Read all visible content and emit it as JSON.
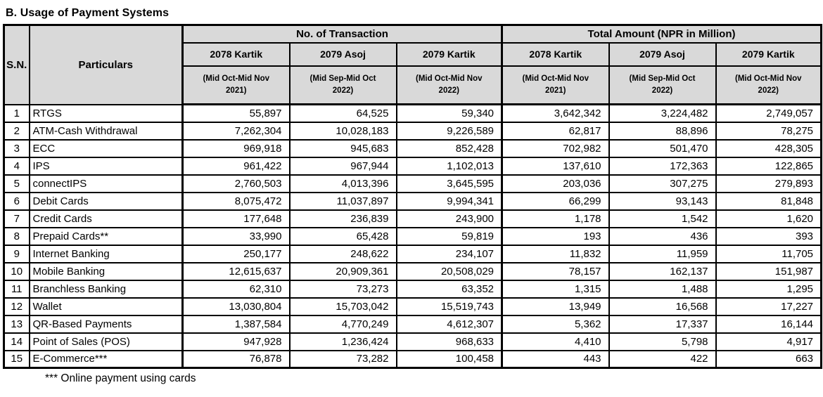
{
  "title": "B. Usage of Payment Systems",
  "colors": {
    "header_bg": "#d9d9d9",
    "border": "#000000",
    "text": "#000000",
    "row_bg": "#ffffff"
  },
  "table": {
    "corner": {
      "sn": "S.N.",
      "particulars": "Particulars"
    },
    "groups": [
      {
        "label": "No. of Transaction"
      },
      {
        "label": "Total Amount (NPR in Million)"
      }
    ],
    "periods": [
      {
        "name": "2078 Kartik",
        "sub": "(Mid Oct-Mid Nov 2021)"
      },
      {
        "name": "2079 Asoj",
        "sub": "(Mid Sep-Mid Oct 2022)"
      },
      {
        "name": "2079 Kartik",
        "sub": "(Mid Oct-Mid Nov 2022)"
      }
    ],
    "rows": [
      {
        "sn": "1",
        "particular": "RTGS",
        "values": [
          "55,897",
          "64,525",
          "59,340",
          "3,642,342",
          "3,224,482",
          "2,749,057"
        ]
      },
      {
        "sn": "2",
        "particular": "ATM-Cash Withdrawal",
        "values": [
          "7,262,304",
          "10,028,183",
          "9,226,589",
          "62,817",
          "88,896",
          "78,275"
        ]
      },
      {
        "sn": "3",
        "particular": "ECC",
        "values": [
          "969,918",
          "945,683",
          "852,428",
          "702,982",
          "501,470",
          "428,305"
        ]
      },
      {
        "sn": "4",
        "particular": "IPS",
        "values": [
          "961,422",
          "967,944",
          "1,102,013",
          "137,610",
          "172,363",
          "122,865"
        ]
      },
      {
        "sn": "5",
        "particular": "connectIPS",
        "values": [
          "2,760,503",
          "4,013,396",
          "3,645,595",
          "203,036",
          "307,275",
          "279,893"
        ]
      },
      {
        "sn": "6",
        "particular": "Debit Cards",
        "values": [
          "8,075,472",
          "11,037,897",
          "9,994,341",
          "66,299",
          "93,143",
          "81,848"
        ]
      },
      {
        "sn": "7",
        "particular": "Credit Cards",
        "values": [
          "177,648",
          "236,839",
          "243,900",
          "1,178",
          "1,542",
          "1,620"
        ]
      },
      {
        "sn": "8",
        "particular": "Prepaid Cards**",
        "values": [
          "33,990",
          "65,428",
          "59,819",
          "193",
          "436",
          "393"
        ]
      },
      {
        "sn": "9",
        "particular": "Internet Banking",
        "values": [
          "250,177",
          "248,622",
          "234,107",
          "11,832",
          "11,959",
          "11,705"
        ]
      },
      {
        "sn": "10",
        "particular": "Mobile Banking",
        "values": [
          "12,615,637",
          "20,909,361",
          "20,508,029",
          "78,157",
          "162,137",
          "151,987"
        ]
      },
      {
        "sn": "11",
        "particular": "Branchless Banking",
        "values": [
          "62,310",
          "73,273",
          "63,352",
          "1,315",
          "1,488",
          "1,295"
        ]
      },
      {
        "sn": "12",
        "particular": "Wallet",
        "values": [
          "13,030,804",
          "15,703,042",
          "15,519,743",
          "13,949",
          "16,568",
          "17,227"
        ]
      },
      {
        "sn": "13",
        "particular": "QR-Based Payments",
        "values": [
          "1,387,584",
          "4,770,249",
          "4,612,307",
          "5,362",
          "17,337",
          "16,144"
        ]
      },
      {
        "sn": "14",
        "particular": "Point of Sales (POS)",
        "values": [
          "947,928",
          "1,236,424",
          "968,633",
          "4,410",
          "5,798",
          "4,917"
        ]
      },
      {
        "sn": "15",
        "particular": "E-Commerce***",
        "values": [
          "76,878",
          "73,282",
          "100,458",
          "443",
          "422",
          "663"
        ]
      }
    ]
  },
  "footnote": "*** Online payment using cards"
}
